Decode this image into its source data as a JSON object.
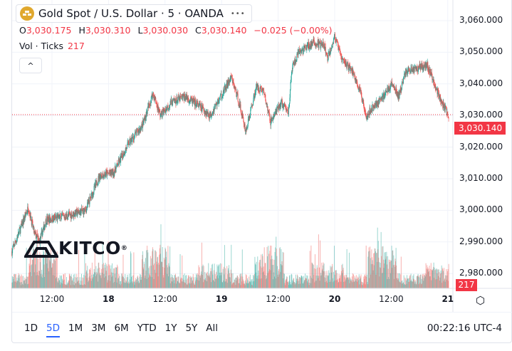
{
  "header": {
    "title": "Gold Spot / U.S. Dollar · 5 · OANDA",
    "more": "•••"
  },
  "ohlc": {
    "o_label": "O",
    "o": "3,030.175",
    "h_label": "H",
    "h": "3,030.310",
    "l_label": "L",
    "l": "3,030.030",
    "c_label": "C",
    "c": "3,030.140",
    "change": "−0.025 (−0.00%)"
  },
  "volume": {
    "label": "Vol · Ticks",
    "value": "217"
  },
  "collapse_icon": "^",
  "watermark": "KITCO",
  "price_axis": [
    "3,060.000",
    "3,050.000",
    "3,040.000",
    "3,030.000",
    "3,020.000",
    "3,010.000",
    "3,000.000",
    "2,990.000",
    "2,980.000"
  ],
  "last_price": "3,030.140",
  "volume_tag": "217",
  "time_axis": [
    {
      "label": "12:00",
      "bold": false
    },
    {
      "label": "18",
      "bold": true
    },
    {
      "label": "12:00",
      "bold": false
    },
    {
      "label": "19",
      "bold": true
    },
    {
      "label": "12:00",
      "bold": false
    },
    {
      "label": "20",
      "bold": true
    },
    {
      "label": "12:00",
      "bold": false
    },
    {
      "label": "21",
      "bold": true
    }
  ],
  "ranges": [
    "1D",
    "5D",
    "1M",
    "3M",
    "6M",
    "YTD",
    "1Y",
    "5Y",
    "All"
  ],
  "active_range": "5D",
  "clock": "00:22:16 UTC-4",
  "colors": {
    "up": "#26a69a",
    "down": "#ef5350",
    "accent": "#2962ff"
  },
  "chart_data": {
    "type": "candlestick",
    "symbol": "XAUUSD",
    "interval": "5m",
    "price_path_hours_from_17th": [
      [
        3.5,
        2987
      ],
      [
        5.5,
        2995
      ],
      [
        7,
        3001
      ],
      [
        8.2,
        2993
      ],
      [
        9.3,
        2990
      ],
      [
        10.8,
        2997
      ],
      [
        14.6,
        2998
      ],
      [
        19.1,
        3000
      ],
      [
        22.1,
        3011
      ],
      [
        25.1,
        3012
      ],
      [
        28.2,
        3021
      ],
      [
        31.2,
        3027
      ],
      [
        33.4,
        3037
      ],
      [
        35,
        3030
      ],
      [
        37.2,
        3034
      ],
      [
        40.2,
        3036
      ],
      [
        43.2,
        3033
      ],
      [
        45.5,
        3030
      ],
      [
        47.8,
        3036
      ],
      [
        50,
        3042
      ],
      [
        51.5,
        3035
      ],
      [
        53.1,
        3025
      ],
      [
        55.3,
        3039
      ],
      [
        56.8,
        3038
      ],
      [
        58.3,
        3028
      ],
      [
        60.6,
        3034
      ],
      [
        62.1,
        3031
      ],
      [
        62.9,
        3045
      ],
      [
        64.4,
        3050
      ],
      [
        67.4,
        3053
      ],
      [
        69.7,
        3052
      ],
      [
        70.4,
        3048
      ],
      [
        71.9,
        3055
      ],
      [
        73.4,
        3048
      ],
      [
        75.7,
        3044
      ],
      [
        77.2,
        3038
      ],
      [
        78.7,
        3030
      ],
      [
        80.2,
        3033
      ],
      [
        81.7,
        3035
      ],
      [
        84,
        3040
      ],
      [
        85.5,
        3036
      ],
      [
        87,
        3044
      ],
      [
        89.3,
        3045
      ],
      [
        91.5,
        3046
      ],
      [
        93.1,
        3040
      ],
      [
        94.6,
        3034
      ],
      [
        96.1,
        3030
      ]
    ],
    "ylim": [
      2976,
      3064
    ]
  }
}
